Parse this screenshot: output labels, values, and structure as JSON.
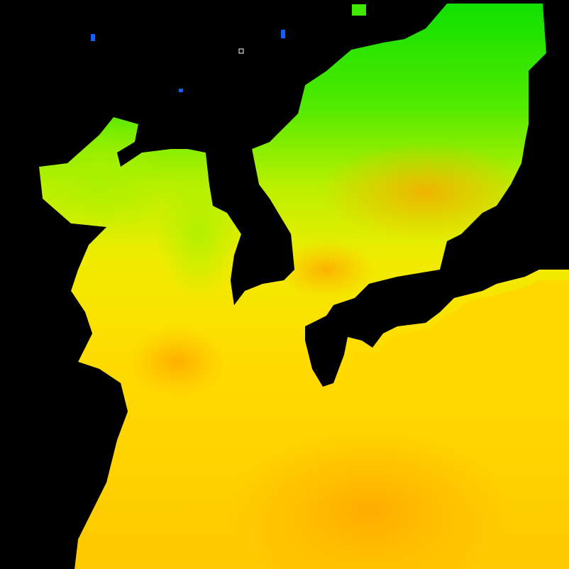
{
  "map": {
    "colors": {
      "no_data": "#000000",
      "cold": "#00e000",
      "cool": "#88f000",
      "mild": "#e8f000",
      "warm": "#ffd400",
      "warmest": "#ffa000",
      "coldest_specks": "#1060ff",
      "marker": "#ffffff"
    }
  }
}
